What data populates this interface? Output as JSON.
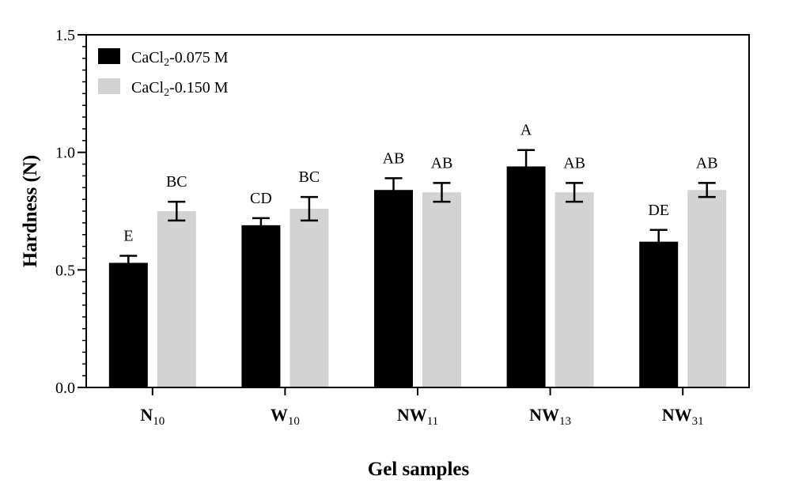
{
  "chart_data": {
    "type": "bar",
    "title": "",
    "xlabel": "Gel samples",
    "ylabel": "Hardness (N)",
    "ylim": [
      0,
      1.5
    ],
    "yticks": [
      "0.0",
      "0.5",
      "1.0",
      "1.5"
    ],
    "y_minor_step": 0.05,
    "grid": false,
    "legend_position": "top-left",
    "categories": [
      {
        "main": "N",
        "sub": "10"
      },
      {
        "main": "W",
        "sub": "10"
      },
      {
        "main": "NW",
        "sub": "11"
      },
      {
        "main": "NW",
        "sub": "13"
      },
      {
        "main": "NW",
        "sub": "31"
      }
    ],
    "series": [
      {
        "name": {
          "pre": "CaCl",
          "sub": "2",
          "post": "-0.075 M"
        },
        "color": "#000000",
        "values": [
          0.53,
          0.69,
          0.84,
          0.94,
          0.62
        ],
        "errors": [
          0.03,
          0.03,
          0.05,
          0.07,
          0.05
        ],
        "labels": [
          "E",
          "CD",
          "AB",
          "A",
          "DE"
        ]
      },
      {
        "name": {
          "pre": "CaCl",
          "sub": "2",
          "post": "-0.150 M"
        },
        "color": "#d3d3d3",
        "values": [
          0.75,
          0.76,
          0.83,
          0.83,
          0.84
        ],
        "errors": [
          0.04,
          0.05,
          0.04,
          0.04,
          0.03
        ],
        "labels": [
          "BC",
          "BC",
          "AB",
          "AB",
          "AB"
        ]
      }
    ]
  }
}
